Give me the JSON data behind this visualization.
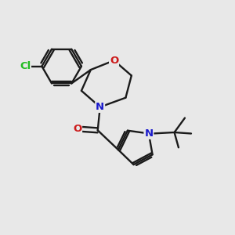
{
  "bg_color": "#e8e8e8",
  "bond_color": "#1a1a1a",
  "bond_lw": 1.7,
  "font_size": 9.5,
  "fig_size": [
    3.0,
    3.0
  ],
  "dpi": 100,
  "colors": {
    "N": "#1a1acc",
    "O": "#cc1a1a",
    "Cl": "#22bb22",
    "C": "#1a1a1a"
  },
  "xlim": [
    0,
    10
  ],
  "ylim": [
    0,
    10
  ]
}
